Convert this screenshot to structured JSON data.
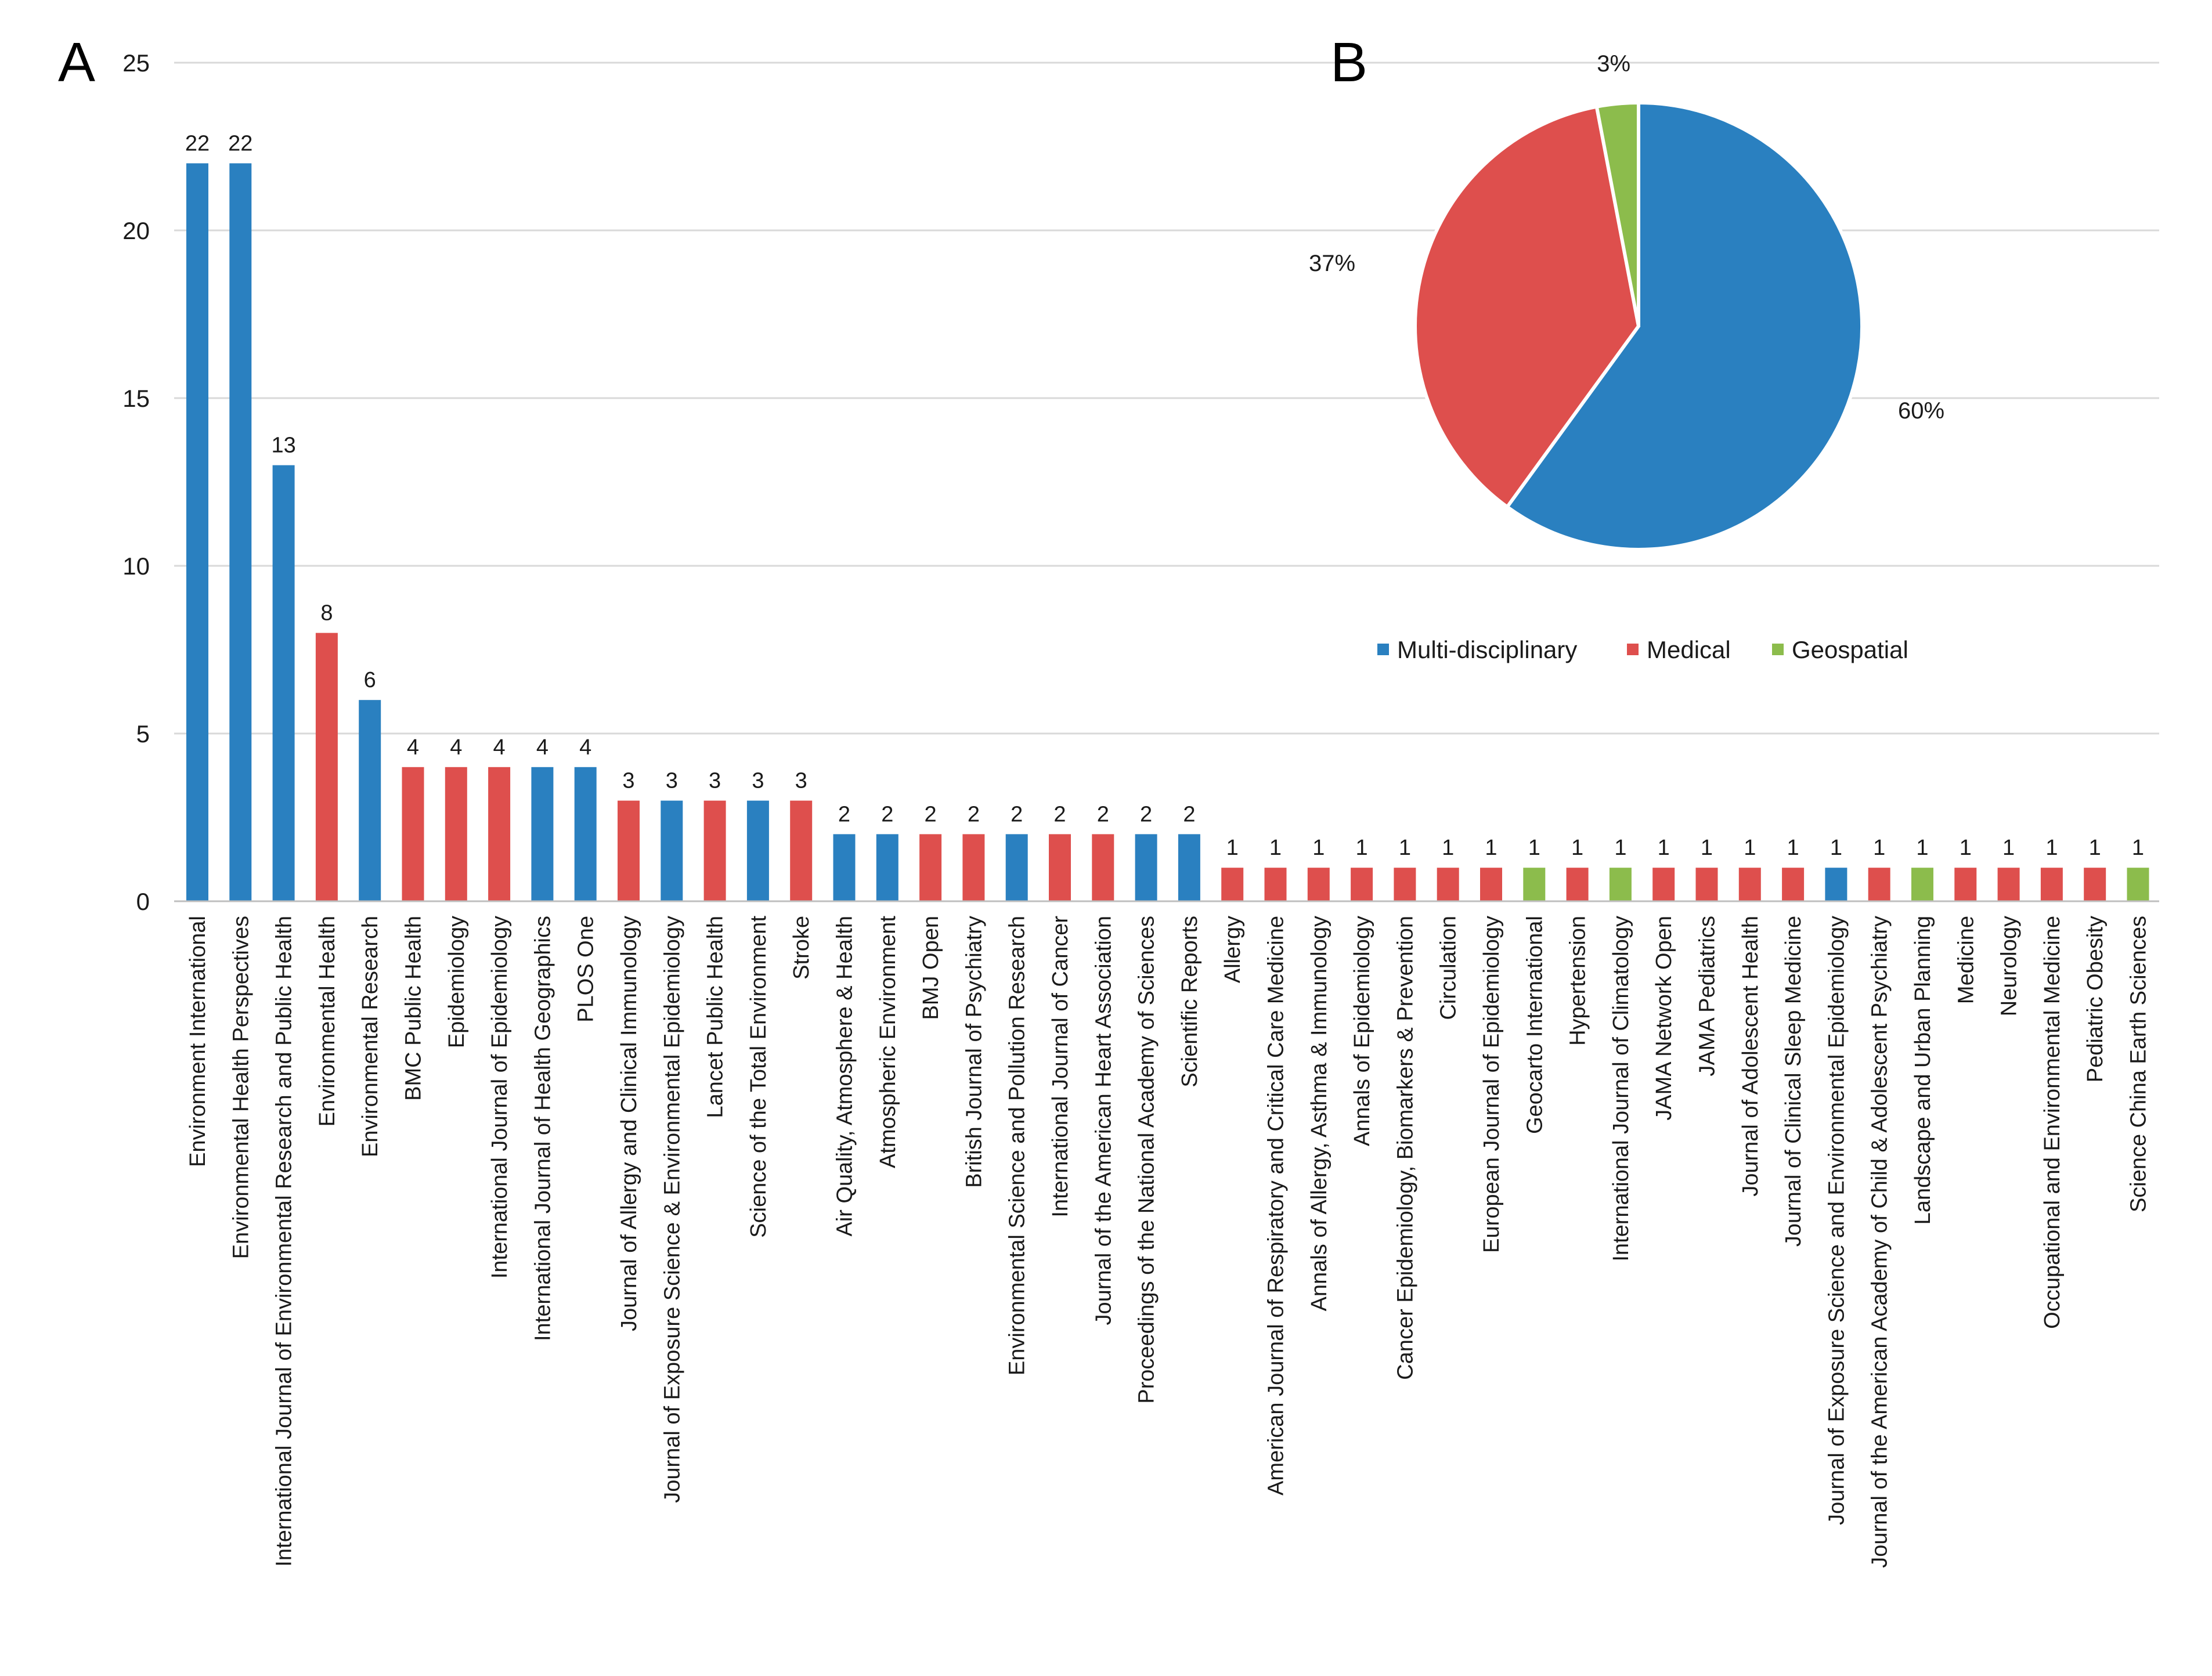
{
  "panel_a": {
    "letter": "A"
  },
  "panel_b": {
    "letter": "B"
  },
  "colors": {
    "multi": "#2a80c0",
    "medical": "#de4f4d",
    "geo": "#8cbc4c",
    "grid": "#d9d9d9",
    "axis": "#bfbfbf",
    "text": "#1a1a1a"
  },
  "chart_data": [
    {
      "type": "bar",
      "panel": "A",
      "title": "",
      "xlabel": "",
      "ylabel": "",
      "ylim": [
        0,
        25
      ],
      "yticks": [
        0,
        5,
        10,
        15,
        20,
        25
      ],
      "grid": true,
      "categories": [
        "Environment International",
        "Environmental Health Perspectives",
        "International Journal of Environmental Research and Public Health",
        "Environmental Health",
        "Environmental Research",
        "BMC Public Health",
        "Epidemiology",
        "International Journal of Epidemiology",
        "International Journal of Health Geographics",
        "PLOS One",
        "Journal of Allergy and Clinical Immunology",
        "Journal of Exposure Science & Environmental Epidemiology",
        "Lancet Public Health",
        "Science of the Total Environment",
        "Stroke",
        "Air Quality, Atmosphere & Health",
        "Atmospheric Environment",
        "BMJ Open",
        "British Journal of Psychiatry",
        "Environmental Science and Pollution Research",
        "International Journal of Cancer",
        "Journal of the American Heart Association",
        "Proceedings of the National Academy of Sciences",
        "Scientific Reports",
        "Allergy",
        "American Journal of Respiratory and Critical Care Medicine",
        "Annals of Allergy, Asthma & Immunology",
        "Annals of Epidemiology",
        "Cancer Epidemiology, Biomarkers & Prevention",
        "Circulation",
        "European Journal of Epidemiology",
        "Geocarto International",
        "Hypertension",
        "International Journal of Climatology",
        "JAMA Network Open",
        "JAMA Pediatrics",
        "Journal of Adolescent Health",
        "Journal of Clinical Sleep Medicine",
        "Journal of Exposure Science and Environmental Epidemiology",
        "Journal of the American Academy of Child & Adolescent Psychiatry",
        "Landscape and Urban Planning",
        "Medicine",
        "Neurology",
        "Occupational and Environmental Medicine",
        "Pediatric Obesity",
        "Science China Earth Sciences"
      ],
      "values": [
        22,
        22,
        13,
        8,
        6,
        4,
        4,
        4,
        4,
        4,
        3,
        3,
        3,
        3,
        3,
        2,
        2,
        2,
        2,
        2,
        2,
        2,
        2,
        2,
        1,
        1,
        1,
        1,
        1,
        1,
        1,
        1,
        1,
        1,
        1,
        1,
        1,
        1,
        1,
        1,
        1,
        1,
        1,
        1,
        1,
        1
      ],
      "groups": [
        "multi",
        "multi",
        "multi",
        "medical",
        "multi",
        "medical",
        "medical",
        "medical",
        "multi",
        "multi",
        "medical",
        "multi",
        "medical",
        "multi",
        "medical",
        "multi",
        "multi",
        "medical",
        "medical",
        "multi",
        "medical",
        "medical",
        "multi",
        "multi",
        "medical",
        "medical",
        "medical",
        "medical",
        "medical",
        "medical",
        "medical",
        "geo",
        "medical",
        "geo",
        "medical",
        "medical",
        "medical",
        "medical",
        "multi",
        "medical",
        "geo",
        "medical",
        "medical",
        "medical",
        "medical",
        "geo"
      ]
    },
    {
      "type": "pie",
      "panel": "B",
      "title": "",
      "legend_position": "bottom",
      "slices": [
        {
          "key": "multi",
          "label": "Multi-disciplinary",
          "value": 60,
          "display": "60%"
        },
        {
          "key": "medical",
          "label": "Medical",
          "value": 37,
          "display": "37%"
        },
        {
          "key": "geo",
          "label": "Geospatial",
          "value": 3,
          "display": "3%"
        }
      ]
    }
  ]
}
